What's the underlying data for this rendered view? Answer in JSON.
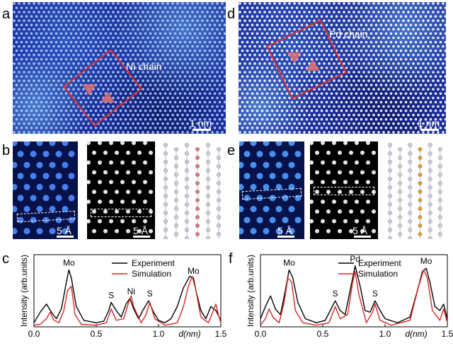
{
  "labels": {
    "a": "a",
    "b": "b",
    "c": "c",
    "d": "d",
    "e": "e",
    "f": "f"
  },
  "panel_a": {
    "chain_label": "Ni chain",
    "scale_bar": "1 nm"
  },
  "panel_d": {
    "chain_label": "Pd chain",
    "scale_bar": "1 nm"
  },
  "panel_b": {
    "exp_scale": "5 Å",
    "sim_scale": "5 Å"
  },
  "panel_e": {
    "exp_scale": "5 Å",
    "sim_scale": "5 Å"
  },
  "colors": {
    "experiment": "#000000",
    "simulation": "#d62728",
    "box": "#d93030",
    "ni_atom": "#d9776f",
    "pd_atom": "#e0a030"
  },
  "chart_data": [
    {
      "type": "line",
      "panel": "c",
      "xlabel": "d(nm)",
      "ylabel": "Intensity (arb.units)",
      "xlim": [
        0.0,
        1.5
      ],
      "xticks": [
        "0.0",
        "0.5",
        "1.0",
        "1.5"
      ],
      "legend": [
        "Experiment",
        "Simulation"
      ],
      "legend_position": "top-right",
      "peak_labels": [
        {
          "text": "Mo",
          "x": 0.28
        },
        {
          "text": "S",
          "x": 0.62
        },
        {
          "text": "Ni",
          "x": 0.78
        },
        {
          "text": "S",
          "x": 0.93
        },
        {
          "text": "Mo",
          "x": 1.28
        }
      ],
      "series": [
        {
          "name": "Experiment",
          "x": [
            0.0,
            0.05,
            0.1,
            0.14,
            0.18,
            0.22,
            0.26,
            0.28,
            0.3,
            0.34,
            0.4,
            0.5,
            0.56,
            0.6,
            0.62,
            0.66,
            0.7,
            0.74,
            0.77,
            0.8,
            0.84,
            0.88,
            0.92,
            0.96,
            1.0,
            1.05,
            1.1,
            1.15,
            1.2,
            1.25,
            1.28,
            1.3,
            1.34,
            1.38,
            1.42,
            1.46,
            1.5
          ],
          "y": [
            0.05,
            0.18,
            0.28,
            0.18,
            0.1,
            0.22,
            0.55,
            0.7,
            0.6,
            0.25,
            0.08,
            0.05,
            0.07,
            0.2,
            0.3,
            0.2,
            0.12,
            0.28,
            0.35,
            0.22,
            0.1,
            0.22,
            0.32,
            0.18,
            0.08,
            0.05,
            0.1,
            0.25,
            0.48,
            0.62,
            0.6,
            0.45,
            0.2,
            0.1,
            0.25,
            0.2,
            0.08
          ]
        },
        {
          "name": "Simulation",
          "x": [
            0.0,
            0.05,
            0.1,
            0.13,
            0.16,
            0.2,
            0.24,
            0.27,
            0.3,
            0.33,
            0.38,
            0.5,
            0.58,
            0.62,
            0.66,
            0.72,
            0.76,
            0.78,
            0.8,
            0.86,
            0.9,
            0.93,
            0.97,
            1.05,
            1.15,
            1.2,
            1.24,
            1.27,
            1.3,
            1.34,
            1.4,
            1.44,
            1.46,
            1.48,
            1.5
          ],
          "y": [
            0.02,
            0.03,
            0.1,
            0.18,
            0.08,
            0.05,
            0.2,
            0.45,
            0.5,
            0.15,
            0.03,
            0.02,
            0.05,
            0.22,
            0.08,
            0.1,
            0.3,
            0.38,
            0.25,
            0.05,
            0.15,
            0.3,
            0.1,
            0.02,
            0.05,
            0.25,
            0.5,
            0.62,
            0.45,
            0.12,
            0.05,
            0.2,
            0.28,
            0.15,
            0.05
          ]
        }
      ]
    },
    {
      "type": "line",
      "panel": "f",
      "xlabel": "d(nm)",
      "ylabel": "Intensity (arb.units)",
      "xlim": [
        0.0,
        1.5
      ],
      "xticks": [
        "0.0",
        "0.5",
        "1.0",
        "1.5"
      ],
      "legend": [
        "Experiment",
        "Simulation"
      ],
      "legend_position": "top-right",
      "peak_labels": [
        {
          "text": "Mo",
          "x": 0.23
        },
        {
          "text": "S",
          "x": 0.6
        },
        {
          "text": "Pd",
          "x": 0.76
        },
        {
          "text": "S",
          "x": 0.92
        },
        {
          "text": "Mo",
          "x": 1.33
        }
      ],
      "series": [
        {
          "name": "Experiment",
          "x": [
            0.0,
            0.04,
            0.08,
            0.12,
            0.16,
            0.2,
            0.23,
            0.26,
            0.3,
            0.36,
            0.45,
            0.52,
            0.56,
            0.6,
            0.64,
            0.68,
            0.72,
            0.76,
            0.8,
            0.84,
            0.88,
            0.92,
            0.96,
            1.0,
            1.1,
            1.2,
            1.26,
            1.3,
            1.33,
            1.36,
            1.4,
            1.44,
            1.47,
            1.5
          ],
          "y": [
            0.1,
            0.25,
            0.38,
            0.22,
            0.15,
            0.45,
            0.7,
            0.6,
            0.3,
            0.1,
            0.05,
            0.08,
            0.2,
            0.32,
            0.2,
            0.15,
            0.45,
            0.75,
            0.5,
            0.2,
            0.18,
            0.32,
            0.2,
            0.1,
            0.05,
            0.12,
            0.45,
            0.68,
            0.72,
            0.55,
            0.25,
            0.2,
            0.28,
            0.1
          ]
        },
        {
          "name": "Simulation",
          "x": [
            0.0,
            0.04,
            0.07,
            0.1,
            0.15,
            0.19,
            0.22,
            0.25,
            0.28,
            0.34,
            0.45,
            0.55,
            0.6,
            0.64,
            0.7,
            0.74,
            0.76,
            0.79,
            0.85,
            0.9,
            0.92,
            0.96,
            1.05,
            1.2,
            1.27,
            1.31,
            1.34,
            1.38,
            1.44,
            1.47,
            1.5
          ],
          "y": [
            0.02,
            0.1,
            0.22,
            0.12,
            0.05,
            0.3,
            0.6,
            0.55,
            0.2,
            0.05,
            0.02,
            0.05,
            0.25,
            0.1,
            0.15,
            0.55,
            0.68,
            0.4,
            0.05,
            0.18,
            0.28,
            0.08,
            0.02,
            0.08,
            0.5,
            0.7,
            0.6,
            0.2,
            0.08,
            0.22,
            0.05
          ]
        }
      ]
    }
  ]
}
